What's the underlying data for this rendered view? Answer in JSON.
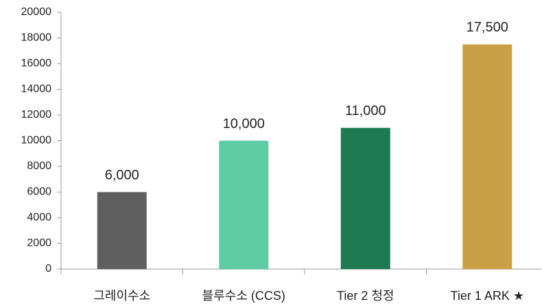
{
  "chart_data": {
    "type": "bar",
    "categories": [
      "그레이수소",
      "블루수소 (CCS)",
      "Tier 2 청정",
      "Tier 1 ARK ★"
    ],
    "values": [
      6000,
      10000,
      11000,
      17500
    ],
    "value_labels": [
      "6,000",
      "10,000",
      "11,000",
      "17,500"
    ],
    "colors": [
      "#5f5f5f",
      "#5ecba5",
      "#1e7a53",
      "#c9a045"
    ],
    "ylim": [
      0,
      20000
    ],
    "yticks": [
      0,
      2000,
      4000,
      6000,
      8000,
      10000,
      12000,
      14000,
      16000,
      18000,
      20000
    ],
    "grid": false
  }
}
